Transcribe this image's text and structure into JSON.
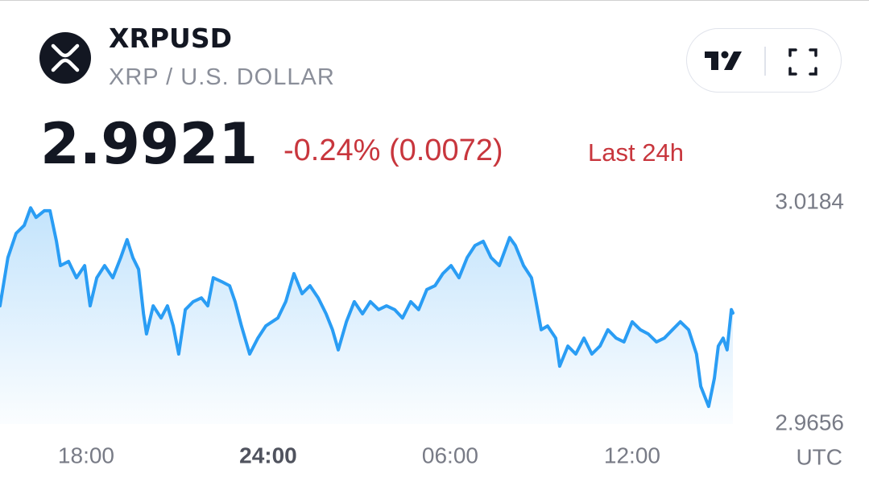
{
  "header": {
    "symbol": "XRPUSD",
    "name": "XRP / U.S. DOLLAR"
  },
  "price": {
    "last": "2.9921",
    "change": "-0.24% (0.0072)",
    "period": "Last 24h"
  },
  "chart_data": {
    "type": "line",
    "color": "#2a9df4",
    "x_label": "UTC",
    "xlim": [
      -2.84,
      21.32
    ],
    "xticks": [
      {
        "value": 0,
        "label": "18:00"
      },
      {
        "value": 6,
        "label": "24:00"
      },
      {
        "value": 12,
        "label": "06:00"
      },
      {
        "value": 18,
        "label": "12:00"
      }
    ],
    "ylim": [
      2.9656,
      3.0184
    ],
    "yticks": [
      2.9656,
      3.0184
    ],
    "x": [
      -2.84,
      -2.58,
      -2.31,
      -2.04,
      -1.83,
      -1.65,
      -1.38,
      -1.19,
      -0.98,
      -0.85,
      -0.58,
      -0.32,
      -0.05,
      0.13,
      0.35,
      0.61,
      0.88,
      1.14,
      1.35,
      1.54,
      1.73,
      1.89,
      1.99,
      2.21,
      2.47,
      2.68,
      2.87,
      3.05,
      3.27,
      3.53,
      3.8,
      4.01,
      4.19,
      4.46,
      4.73,
      4.91,
      5.12,
      5.39,
      5.66,
      5.92,
      6.32,
      6.58,
      6.85,
      7.12,
      7.38,
      7.65,
      7.91,
      8.12,
      8.31,
      8.58,
      8.84,
      9.11,
      9.37,
      9.64,
      9.9,
      10.17,
      10.43,
      10.7,
      10.96,
      11.23,
      11.5,
      11.76,
      12.03,
      12.29,
      12.56,
      12.82,
      13.09,
      13.35,
      13.62,
      13.96,
      14.15,
      14.42,
      14.68,
      14.81,
      15.0,
      15.21,
      15.48,
      15.61,
      15.88,
      16.14,
      16.41,
      16.67,
      16.94,
      17.2,
      17.47,
      17.73,
      18.0,
      18.27,
      18.53,
      18.8,
      19.06,
      19.33,
      19.59,
      19.86,
      20.12,
      20.26,
      20.52,
      20.71,
      20.84,
      21.0,
      21.13,
      21.27,
      21.32
    ],
    "values": [
      2.9938,
      3.0053,
      3.0111,
      3.013,
      3.0172,
      3.0149,
      3.0165,
      3.0165,
      3.0092,
      3.0034,
      3.0044,
      3.0005,
      3.0034,
      2.9938,
      3.0005,
      3.0034,
      3.0005,
      3.0053,
      3.0096,
      3.0053,
      3.0025,
      2.9919,
      2.9871,
      2.9938,
      2.9909,
      2.9938,
      2.989,
      2.9823,
      2.9929,
      2.9948,
      2.9957,
      2.9938,
      3.0005,
      2.9996,
      2.9986,
      2.9948,
      2.989,
      2.9823,
      2.9861,
      2.989,
      2.9909,
      2.9948,
      3.0015,
      2.9967,
      2.9986,
      2.9957,
      2.9919,
      2.9881,
      2.9833,
      2.99,
      2.9948,
      2.9919,
      2.9948,
      2.9929,
      2.9938,
      2.9929,
      2.9909,
      2.9948,
      2.9929,
      2.9977,
      2.9986,
      3.0015,
      3.0034,
      3.0005,
      3.0053,
      3.0082,
      3.0092,
      3.0053,
      3.0034,
      3.0101,
      3.0082,
      3.0034,
      3.0005,
      2.9957,
      2.9881,
      2.989,
      2.9861,
      2.9794,
      2.9842,
      2.9823,
      2.9861,
      2.9823,
      2.9842,
      2.9881,
      2.9861,
      2.9852,
      2.99,
      2.9881,
      2.9871,
      2.9852,
      2.9861,
      2.9881,
      2.99,
      2.9881,
      2.9823,
      2.9746,
      2.9698,
      2.9765,
      2.9842,
      2.9861,
      2.9833,
      2.9929,
      2.9921
    ]
  }
}
